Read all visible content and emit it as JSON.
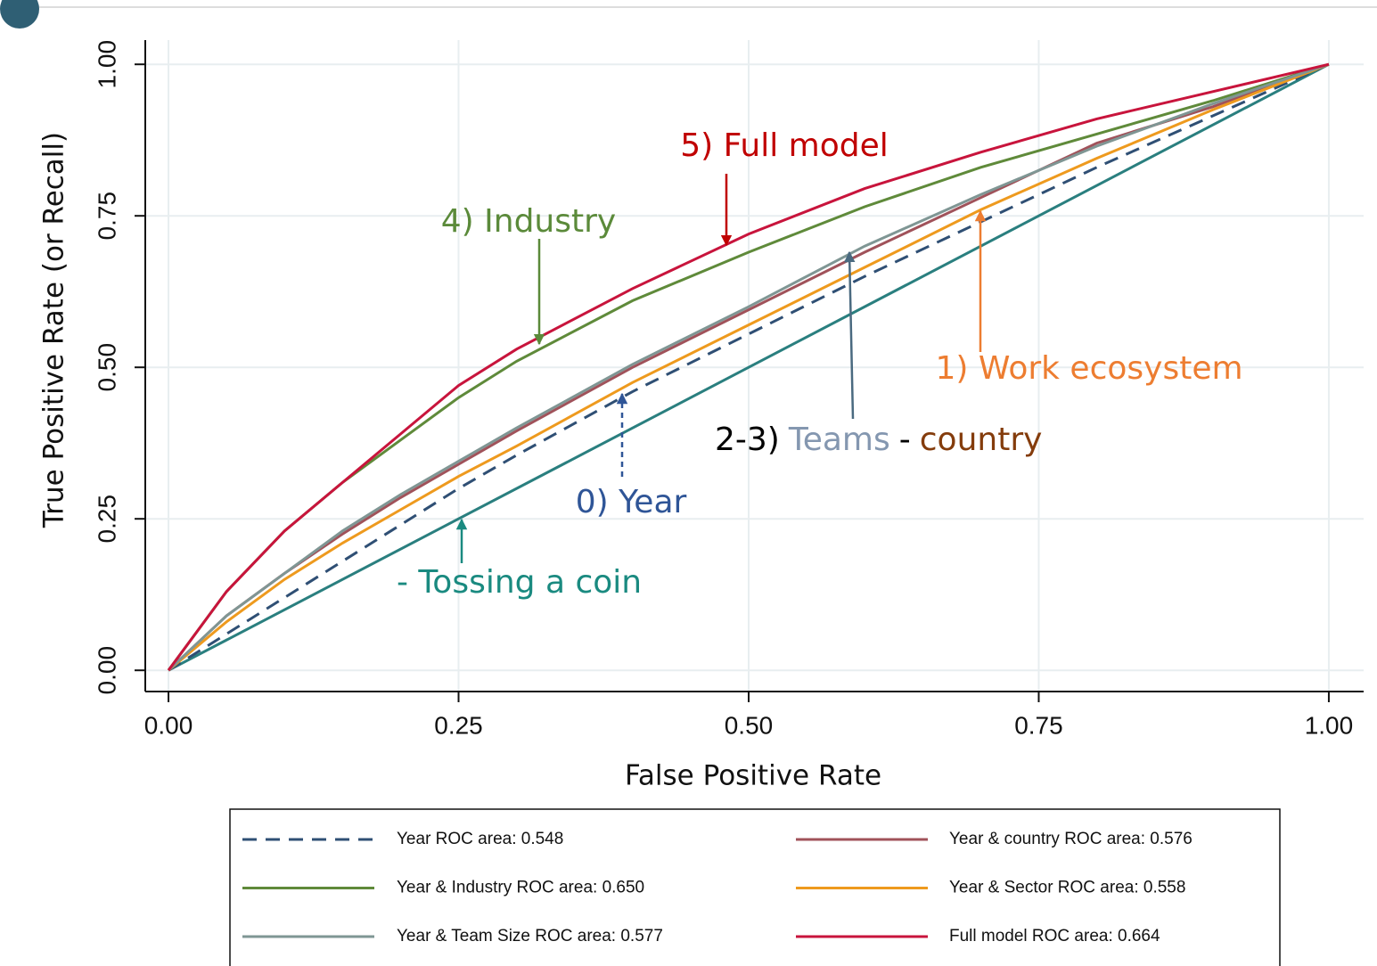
{
  "chart_data": {
    "type": "line",
    "x_label": "False Positive Rate",
    "y_label": "True Positive Rate (or Recall)",
    "xlim": [
      -0.02,
      1.03
    ],
    "ylim": [
      -0.035,
      1.04
    ],
    "xticks": [
      {
        "value": 0,
        "label": "0.00"
      },
      {
        "value": 0.25,
        "label": "0.25"
      },
      {
        "value": 0.5,
        "label": "0.50"
      },
      {
        "value": 0.75,
        "label": "0.75"
      },
      {
        "value": 1,
        "label": "1.00"
      }
    ],
    "yticks": [
      {
        "value": 0,
        "label": "0.00"
      },
      {
        "value": 0.25,
        "label": "0.25"
      },
      {
        "value": 0.5,
        "label": "0.50"
      },
      {
        "value": 0.75,
        "label": "0.75"
      },
      {
        "value": 1,
        "label": "1.00"
      }
    ],
    "grid": true,
    "x": [
      0,
      0.05,
      0.1,
      0.15,
      0.2,
      0.25,
      0.3,
      0.4,
      0.5,
      0.6,
      0.7,
      0.8,
      0.9,
      1
    ],
    "series": [
      {
        "name": "Year ROC area: 0.548",
        "color": "#2f4f74",
        "dashed": true,
        "values": [
          0,
          0.06,
          0.12,
          0.18,
          0.24,
          0.3,
          0.355,
          0.46,
          0.555,
          0.65,
          0.74,
          0.83,
          0.915,
          1
        ]
      },
      {
        "name": "Year & country ROC area: 0.576",
        "color": "#a0525a",
        "values": [
          0,
          0.09,
          0.16,
          0.225,
          0.285,
          0.34,
          0.395,
          0.5,
          0.595,
          0.69,
          0.78,
          0.87,
          0.93,
          1
        ]
      },
      {
        "name": "Year & Industry ROC area: 0.650",
        "color": "#5f8a3a",
        "values": [
          0,
          0.13,
          0.23,
          0.31,
          0.38,
          0.45,
          0.51,
          0.61,
          0.69,
          0.765,
          0.83,
          0.885,
          0.94,
          1
        ]
      },
      {
        "name": "Year & Sector ROC area: 0.558",
        "color": "#ee9a1e",
        "values": [
          0,
          0.08,
          0.15,
          0.21,
          0.265,
          0.32,
          0.37,
          0.475,
          0.57,
          0.665,
          0.76,
          0.845,
          0.925,
          1
        ]
      },
      {
        "name": "Year & Team Size ROC area: 0.577",
        "color": "#7f9694",
        "values": [
          0,
          0.09,
          0.16,
          0.23,
          0.29,
          0.345,
          0.4,
          0.505,
          0.6,
          0.7,
          0.785,
          0.865,
          0.935,
          1
        ]
      },
      {
        "name": "Full model ROC area: 0.664",
        "color": "#c8143c",
        "values": [
          0,
          0.13,
          0.23,
          0.31,
          0.39,
          0.47,
          0.53,
          0.63,
          0.72,
          0.795,
          0.855,
          0.91,
          0.955,
          1
        ]
      }
    ],
    "reference_line": {
      "color": "#2a7f7f",
      "x": [
        0,
        1
      ],
      "values": [
        0,
        1
      ]
    },
    "annotations": [
      {
        "text": "5) Full model",
        "color": "#c00000"
      },
      {
        "text": "4) Industry",
        "color": "#5b8a3a"
      },
      {
        "text": "1) Work ecosystem",
        "color": "#ed7d31"
      },
      {
        "text": "0) Year",
        "color": "#2f5597"
      },
      {
        "text": "- Tossing a coin",
        "color": "#1a8a80"
      },
      {
        "parts": [
          {
            "text": "2-3)",
            "color": "#000000"
          },
          {
            "text": "Teams",
            "color": "#8497b0"
          },
          {
            "text": "-",
            "color": "#000000"
          },
          {
            "text": "country",
            "color": "#843c0c"
          }
        ]
      }
    ]
  }
}
